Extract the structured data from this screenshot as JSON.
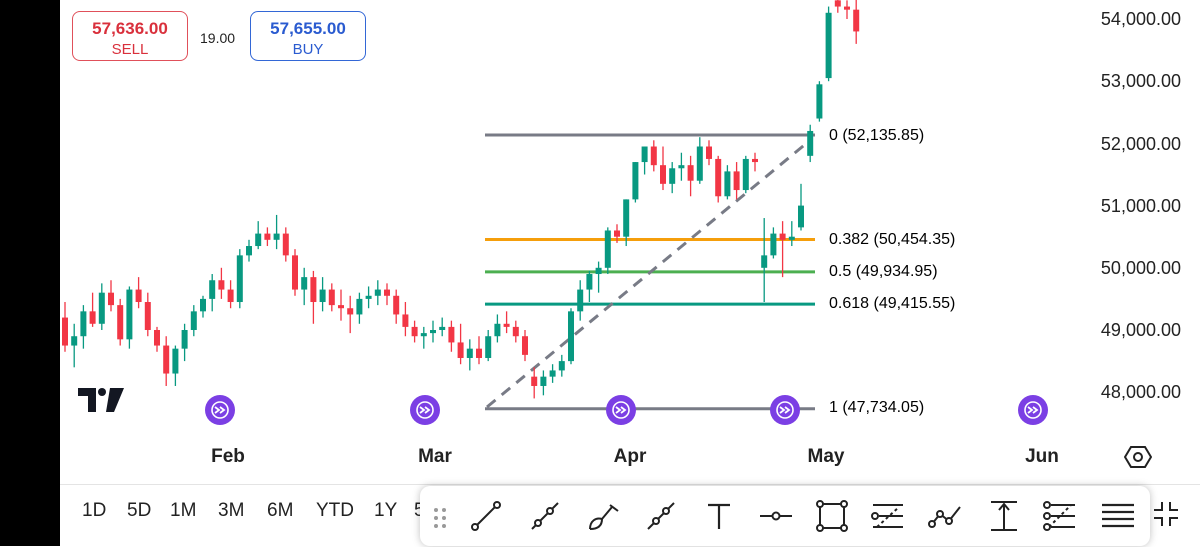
{
  "header": {
    "sell": {
      "price": "57,636.00",
      "label": "SELL"
    },
    "spread": "19.00",
    "buy": {
      "price": "57,655.00",
      "label": "BUY"
    }
  },
  "price_axis": [
    "54,000.00",
    "53,000.00",
    "52,000.00",
    "51,000.00",
    "50,000.00",
    "49,000.00",
    "48,000.00"
  ],
  "time_axis": [
    "Feb",
    "Mar",
    "Apr",
    "May",
    "Jun"
  ],
  "fibonacci": [
    {
      "label": "0 (52,135.85)",
      "level": 52135.85,
      "color": "#787b86"
    },
    {
      "label": "0.382 (50,454.35)",
      "level": 50454.35,
      "color": "#f59e0b"
    },
    {
      "label": "0.5 (49,934.95)",
      "level": 49934.95,
      "color": "#4caf50"
    },
    {
      "label": "0.618 (49,415.55)",
      "level": 49415.55,
      "color": "#089981"
    },
    {
      "label": "1 (47,734.05)",
      "level": 47734.05,
      "color": "#787b86"
    }
  ],
  "colors": {
    "up": "#089981",
    "down": "#f23645",
    "sell": "#d9303c",
    "buy": "#2a5bd0",
    "goto": "#7b3fe4"
  },
  "ranges": [
    "1D",
    "5D",
    "1M",
    "3M",
    "6M",
    "YTD",
    "1Y",
    "5"
  ],
  "drawing_tools": [
    "trend-line",
    "ray",
    "brush",
    "extended-line",
    "text",
    "horizontal-line",
    "rectangle",
    "fib-retracement",
    "path",
    "price-range",
    "fib-channel",
    "menu"
  ],
  "icons": [
    "tradingview-logo-icon",
    "go-to-realtime-icon",
    "settings-icon",
    "drag-handle-icon",
    "collapse-icon"
  ],
  "candles": [
    [
      49200,
      49450,
      48650,
      48750
    ],
    [
      48750,
      49100,
      48400,
      48900
    ],
    [
      48900,
      49400,
      48700,
      49300
    ],
    [
      49300,
      49600,
      49050,
      49100
    ],
    [
      49100,
      49750,
      49000,
      49600
    ],
    [
      49600,
      49800,
      49300,
      49400
    ],
    [
      49400,
      49500,
      48750,
      48850
    ],
    [
      48850,
      49700,
      48700,
      49650
    ],
    [
      49650,
      49850,
      49350,
      49450
    ],
    [
      49450,
      49600,
      48900,
      49000
    ],
    [
      49000,
      49050,
      48650,
      48750
    ],
    [
      48750,
      48900,
      48100,
      48300
    ],
    [
      48300,
      48750,
      48100,
      48700
    ],
    [
      48700,
      49100,
      48500,
      49000
    ],
    [
      49000,
      49400,
      48900,
      49300
    ],
    [
      49300,
      49550,
      49200,
      49500
    ],
    [
      49500,
      49900,
      49300,
      49800
    ],
    [
      49800,
      50000,
      49500,
      49650
    ],
    [
      49650,
      49800,
      49350,
      49450
    ],
    [
      49450,
      50300,
      49350,
      50200
    ],
    [
      50200,
      50450,
      50100,
      50350
    ],
    [
      50350,
      50750,
      50300,
      50550
    ],
    [
      50550,
      50650,
      50350,
      50450
    ],
    [
      50450,
      50850,
      50300,
      50550
    ],
    [
      50550,
      50650,
      50100,
      50200
    ],
    [
      50200,
      50300,
      49550,
      49650
    ],
    [
      49650,
      50000,
      49400,
      49850
    ],
    [
      49850,
      49950,
      49100,
      49450
    ],
    [
      49450,
      49850,
      49300,
      49650
    ],
    [
      49650,
      49750,
      49300,
      49400
    ],
    [
      49400,
      49650,
      49150,
      49350
    ],
    [
      49350,
      49550,
      48950,
      49250
    ],
    [
      49250,
      49600,
      49100,
      49500
    ],
    [
      49500,
      49700,
      49350,
      49550
    ],
    [
      49550,
      49800,
      49400,
      49650
    ],
    [
      49650,
      49750,
      49400,
      49550
    ],
    [
      49550,
      49650,
      49100,
      49250
    ],
    [
      49250,
      49450,
      48900,
      49050
    ],
    [
      49050,
      49150,
      48800,
      48900
    ],
    [
      48900,
      49050,
      48700,
      48950
    ],
    [
      48950,
      49150,
      48800,
      49000
    ],
    [
      49000,
      49200,
      48900,
      49050
    ],
    [
      49050,
      49150,
      48650,
      48800
    ],
    [
      48800,
      49100,
      48450,
      48550
    ],
    [
      48550,
      48850,
      48350,
      48700
    ],
    [
      48700,
      48900,
      48450,
      48550
    ],
    [
      48550,
      49000,
      48500,
      48900
    ],
    [
      48900,
      49250,
      48800,
      49100
    ],
    [
      49100,
      49300,
      48950,
      49050
    ],
    [
      49050,
      49150,
      48800,
      48900
    ],
    [
      48900,
      49000,
      48500,
      48600
    ],
    [
      48250,
      48400,
      47900,
      48100
    ],
    [
      48100,
      48350,
      47950,
      48250
    ],
    [
      48250,
      48450,
      48150,
      48350
    ],
    [
      48350,
      48600,
      48250,
      48500
    ],
    [
      48500,
      49350,
      48450,
      49300
    ],
    [
      49300,
      49800,
      49150,
      49650
    ],
    [
      49650,
      49950,
      49450,
      49900
    ],
    [
      49900,
      50100,
      49600,
      50000
    ],
    [
      50000,
      50650,
      49900,
      50600
    ],
    [
      50600,
      50700,
      50400,
      50500
    ],
    [
      50500,
      51100,
      50350,
      51100
    ],
    [
      51100,
      51700,
      51050,
      51700
    ],
    [
      51700,
      51950,
      51500,
      51950
    ],
    [
      51950,
      52050,
      51550,
      51650
    ],
    [
      51650,
      51950,
      51250,
      51350
    ],
    [
      51350,
      51700,
      51200,
      51600
    ],
    [
      51600,
      51850,
      51400,
      51650
    ],
    [
      51650,
      51800,
      51150,
      51400
    ],
    [
      51400,
      52100,
      51350,
      51950
    ],
    [
      51950,
      52050,
      51650,
      51750
    ],
    [
      51750,
      51800,
      51050,
      51150
    ],
    [
      51150,
      51650,
      51100,
      51550
    ],
    [
      51550,
      51700,
      51100,
      51250
    ],
    [
      51250,
      51800,
      51200,
      51750
    ],
    [
      51750,
      51850,
      51550,
      51700
    ],
    [
      50000,
      50800,
      49450,
      50200
    ],
    [
      50200,
      50650,
      50150,
      50550
    ],
    [
      50550,
      50750,
      49850,
      50450
    ],
    [
      50450,
      50750,
      50350,
      50500
    ],
    [
      50650,
      51350,
      50600,
      51000
    ],
    [
      51800,
      52300,
      51700,
      52200
    ],
    [
      52400,
      53000,
      52350,
      52950
    ],
    [
      53050,
      54200,
      53000,
      54100
    ],
    [
      54300,
      54400,
      54100,
      54200
    ],
    [
      54200,
      54300,
      54000,
      54150
    ],
    [
      54150,
      54400,
      53600,
      53800
    ]
  ]
}
